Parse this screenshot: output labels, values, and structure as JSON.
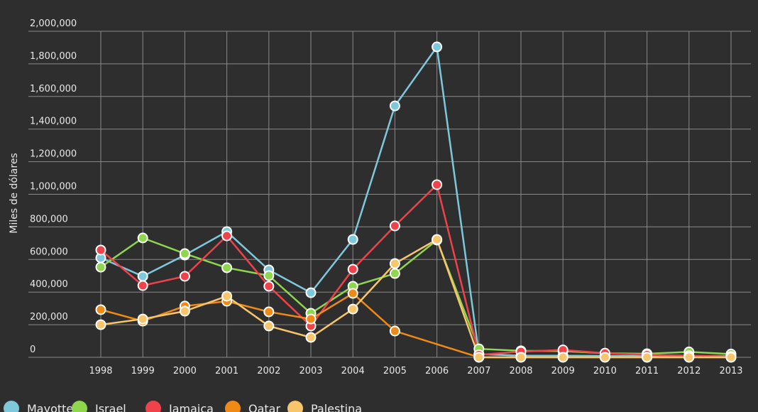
{
  "chart_data": {
    "type": "line",
    "title": "",
    "xlabel": "",
    "ylabel": "Miles de dólares",
    "ylim": [
      0,
      2000000
    ],
    "yticks": [
      0,
      200000,
      400000,
      600000,
      800000,
      1000000,
      1200000,
      1400000,
      1600000,
      1800000,
      2000000
    ],
    "ytick_labels": [
      "0",
      "200,000",
      "400,000",
      "600,000",
      "800,000",
      "1,000,000",
      "1,200,000",
      "1,400,000",
      "1,600,000",
      "1,800,000",
      "2,000,000"
    ],
    "grid": true,
    "legend_position": "bottom-left",
    "x": [
      "1998",
      "1999",
      "2000",
      "2001",
      "2002",
      "2003",
      "2004",
      "2005",
      "2006",
      "2007",
      "2008",
      "2009",
      "2010",
      "2011",
      "2012",
      "2013"
    ],
    "series": [
      {
        "name": "Mayotte",
        "color": "#7ec8dc",
        "values": [
          610000,
          497000,
          627000,
          771000,
          536000,
          396000,
          723000,
          1542000,
          1904000,
          20000,
          10000,
          10000,
          8000,
          8000,
          8000,
          8000
        ]
      },
      {
        "name": "Israel",
        "color": "#8ed64e",
        "values": [
          553000,
          732000,
          636000,
          549000,
          501000,
          270000,
          436000,
          514000,
          719000,
          52000,
          40000,
          38000,
          25000,
          22000,
          33000,
          20000
        ]
      },
      {
        "name": "Jamaica",
        "color": "#f0424a",
        "values": [
          658000,
          440000,
          497000,
          745000,
          436000,
          192000,
          540000,
          806000,
          1059000,
          15000,
          35000,
          45000,
          25000,
          15000,
          10000,
          5000
        ]
      },
      {
        "name": "Qatar",
        "color": "#f08a16",
        "values": [
          292000,
          222000,
          314000,
          344000,
          279000,
          235000,
          392000,
          161000,
          null,
          0,
          0,
          0,
          0,
          0,
          0,
          0
        ]
      },
      {
        "name": "Palestina",
        "color": "#f7c66c",
        "values": [
          200000,
          235000,
          283000,
          375000,
          192000,
          122000,
          296000,
          575000,
          723000,
          0,
          0,
          0,
          0,
          0,
          0,
          0
        ]
      }
    ]
  }
}
